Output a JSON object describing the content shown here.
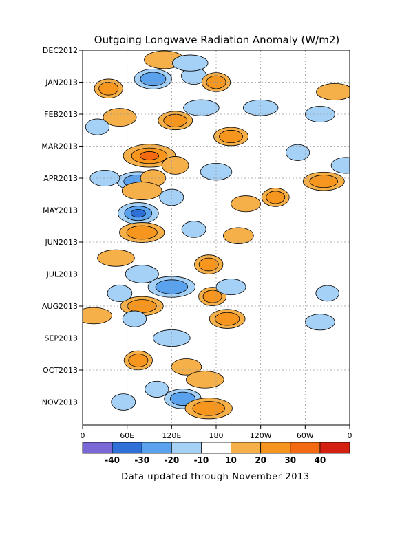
{
  "chart_data": {
    "type": "heatmap",
    "title": "Outgoing Longwave Radiation Anomaly (W/m2)",
    "xlabel": "",
    "ylabel": "",
    "x_ticks": [
      "0",
      "60E",
      "120E",
      "180",
      "120W",
      "60W",
      "0"
    ],
    "y_ticks": [
      "DEC2012",
      "JAN2013",
      "FEB2013",
      "MAR2013",
      "APR2013",
      "MAY2013",
      "JUN2013",
      "JUL2013",
      "AUG2013",
      "SEP2013",
      "OCT2013",
      "NOV2013"
    ],
    "grid": true,
    "colorbar": {
      "tick_labels": [
        "-40",
        "-30",
        "-20",
        "-10",
        "10",
        "20",
        "30",
        "40"
      ],
      "colors": [
        "#7b68d6",
        "#2f6fd8",
        "#5aa2ee",
        "#a6d1f7",
        "#ffffff",
        "#f5b04a",
        "#f7961e",
        "#f36a12",
        "#d42010"
      ]
    },
    "anomaly_blobs": [
      {
        "lon_deg": 35,
        "month": 1.2,
        "value": 22
      },
      {
        "lon_deg": 50,
        "month": 2.1,
        "value": 18
      },
      {
        "lon_deg": 110,
        "month": 0.3,
        "value": 18
      },
      {
        "lon_deg": 150,
        "month": 0.8,
        "value": -15
      },
      {
        "lon_deg": 95,
        "month": 0.9,
        "value": -25
      },
      {
        "lon_deg": 145,
        "month": 0.4,
        "value": -12
      },
      {
        "lon_deg": 180,
        "month": 1.0,
        "value": 22
      },
      {
        "lon_deg": 125,
        "month": 2.2,
        "value": 20
      },
      {
        "lon_deg": 160,
        "month": 1.8,
        "value": -12
      },
      {
        "lon_deg": 20,
        "month": 2.4,
        "value": -12
      },
      {
        "lon_deg": 200,
        "month": 2.7,
        "value": 20
      },
      {
        "lon_deg": 90,
        "month": 3.3,
        "value": 35
      },
      {
        "lon_deg": 125,
        "month": 3.6,
        "value": 18
      },
      {
        "lon_deg": 180,
        "month": 3.8,
        "value": -15
      },
      {
        "lon_deg": 75,
        "month": 4.1,
        "value": -22
      },
      {
        "lon_deg": 95,
        "month": 4.0,
        "value": 15
      },
      {
        "lon_deg": 30,
        "month": 4.0,
        "value": -12
      },
      {
        "lon_deg": 325,
        "month": 4.1,
        "value": 20
      },
      {
        "lon_deg": 260,
        "month": 4.6,
        "value": 20
      },
      {
        "lon_deg": 220,
        "month": 4.8,
        "value": 12
      },
      {
        "lon_deg": 80,
        "month": 4.4,
        "value": 18
      },
      {
        "lon_deg": 120,
        "month": 4.6,
        "value": -13
      },
      {
        "lon_deg": 75,
        "month": 5.1,
        "value": -30
      },
      {
        "lon_deg": 80,
        "month": 5.7,
        "value": 25
      },
      {
        "lon_deg": 150,
        "month": 5.6,
        "value": -13
      },
      {
        "lon_deg": 210,
        "month": 5.8,
        "value": 13
      },
      {
        "lon_deg": 45,
        "month": 6.5,
        "value": 14
      },
      {
        "lon_deg": 170,
        "month": 6.7,
        "value": 22
      },
      {
        "lon_deg": 80,
        "month": 7.0,
        "value": -18
      },
      {
        "lon_deg": 120,
        "month": 7.4,
        "value": -28
      },
      {
        "lon_deg": 175,
        "month": 7.7,
        "value": 20
      },
      {
        "lon_deg": 200,
        "month": 7.4,
        "value": -12
      },
      {
        "lon_deg": 80,
        "month": 8.0,
        "value": 22
      },
      {
        "lon_deg": 50,
        "month": 7.6,
        "value": -14
      },
      {
        "lon_deg": 195,
        "month": 8.4,
        "value": 22
      },
      {
        "lon_deg": 15,
        "month": 8.3,
        "value": 13
      },
      {
        "lon_deg": 70,
        "month": 8.4,
        "value": -12
      },
      {
        "lon_deg": 320,
        "month": 8.5,
        "value": -12
      },
      {
        "lon_deg": 120,
        "month": 9.0,
        "value": -14
      },
      {
        "lon_deg": 75,
        "month": 9.7,
        "value": 22
      },
      {
        "lon_deg": 140,
        "month": 9.9,
        "value": 13
      },
      {
        "lon_deg": 165,
        "month": 10.3,
        "value": 15
      },
      {
        "lon_deg": 100,
        "month": 10.6,
        "value": -12
      },
      {
        "lon_deg": 135,
        "month": 10.9,
        "value": -24
      },
      {
        "lon_deg": 170,
        "month": 11.2,
        "value": 28
      },
      {
        "lon_deg": 55,
        "month": 11.0,
        "value": -13
      },
      {
        "lon_deg": 320,
        "month": 2.0,
        "value": -12
      },
      {
        "lon_deg": 340,
        "month": 1.3,
        "value": 14
      },
      {
        "lon_deg": 290,
        "month": 3.2,
        "value": -12
      },
      {
        "lon_deg": 355,
        "month": 3.6,
        "value": -12
      },
      {
        "lon_deg": 240,
        "month": 1.8,
        "value": -11
      },
      {
        "lon_deg": 330,
        "month": 7.6,
        "value": -11
      }
    ]
  },
  "footer": "Data updated through November 2013"
}
